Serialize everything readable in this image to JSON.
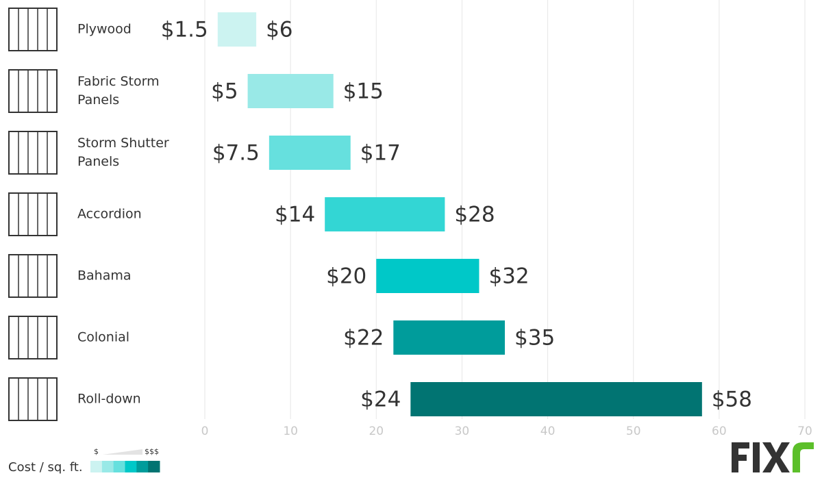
{
  "chart_data": {
    "type": "range-bar",
    "categories": [
      "Plywood",
      "Fabric Storm Panels",
      "Storm Shutter Panels",
      "Accordion",
      "Bahama",
      "Colonial",
      "Roll-down"
    ],
    "low": [
      1.5,
      5,
      7.5,
      14,
      20,
      22,
      24
    ],
    "high": [
      6,
      15,
      17,
      28,
      32,
      35,
      58
    ],
    "low_labels": [
      "$1.5",
      "$5",
      "$7.5",
      "$14",
      "$20",
      "$22",
      "$24"
    ],
    "high_labels": [
      "$6",
      "$15",
      "$17",
      "$28",
      "$32",
      "$35",
      "$58"
    ],
    "colors": [
      "#ccf3f1",
      "#99e9e7",
      "#66e0de",
      "#33d6d4",
      "#00c8c8",
      "#009c9b",
      "#017472"
    ],
    "xlim": [
      0,
      70
    ],
    "xticks": [
      0,
      10,
      20,
      30,
      40,
      50,
      60,
      70
    ],
    "grid": true,
    "legend": {
      "title": "Cost / sq. ft.",
      "low": "$",
      "high": "$$$",
      "colors": [
        "#ccf3f1",
        "#99e9e7",
        "#66e0de",
        "#00c8c8",
        "#009c9b",
        "#017472"
      ]
    }
  }
}
